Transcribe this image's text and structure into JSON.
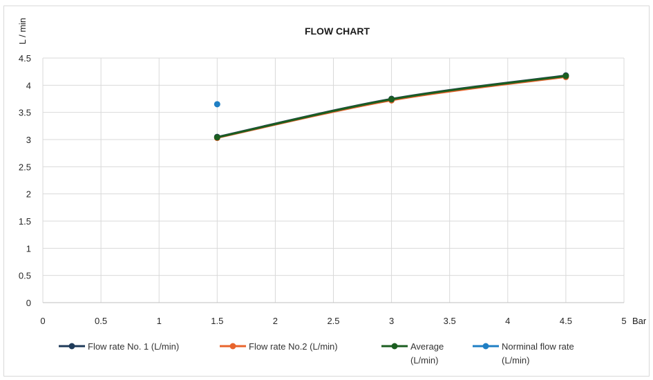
{
  "chart_data": {
    "type": "line",
    "title": "FLOW CHART",
    "xlabel": "Bar",
    "ylabel": "L / min",
    "xlim": [
      0,
      5
    ],
    "ylim": [
      0,
      4.5
    ],
    "x_ticks": [
      "0",
      "0.5",
      "1",
      "1.5",
      "2",
      "2.5",
      "3",
      "3.5",
      "4",
      "4.5",
      "5"
    ],
    "y_ticks": [
      "0",
      "0.5",
      "1",
      "1.5",
      "2",
      "2.5",
      "3",
      "3.5",
      "4",
      "4.5"
    ],
    "grid": true,
    "legend_position": "bottom",
    "series": [
      {
        "name": "Flow rate No. 1 (L/min)",
        "color": "#1f3b5a",
        "x": [
          1.5,
          3,
          4.5
        ],
        "y": [
          3.05,
          3.75,
          4.18
        ]
      },
      {
        "name": "Flow rate No.2 (L/min)",
        "color": "#e8642c",
        "x": [
          1.5,
          3,
          4.5
        ],
        "y": [
          3.03,
          3.72,
          4.15
        ]
      },
      {
        "name": "Average (L/min)",
        "legend_lines": [
          "Average",
          "(L/min)"
        ],
        "color": "#1b5e20",
        "x": [
          1.5,
          3,
          4.5
        ],
        "y": [
          3.04,
          3.74,
          4.17
        ]
      },
      {
        "name": "Norminal flow rate (L/min)",
        "legend_lines": [
          "Norminal flow rate",
          "(L/min)"
        ],
        "color": "#1f7fc4",
        "marker_only": true,
        "x": [
          1.5
        ],
        "y": [
          3.65
        ]
      }
    ]
  }
}
